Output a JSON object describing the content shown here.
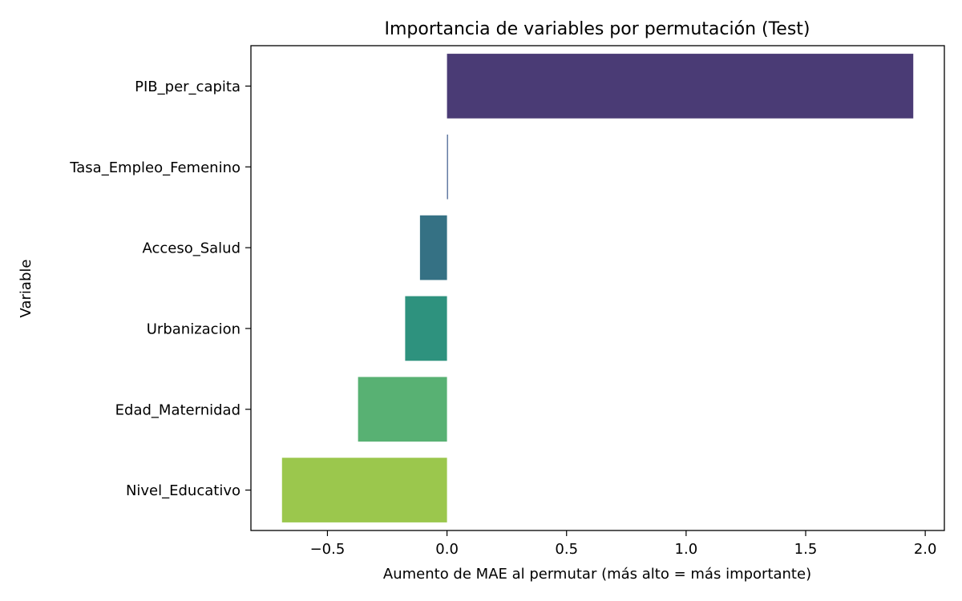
{
  "chart_data": {
    "type": "bar",
    "orientation": "horizontal",
    "title": "Importancia de variables por permutación (Test)",
    "xlabel": "Aumento de MAE al permutar (más alto = más importante)",
    "ylabel": "Variable",
    "categories": [
      "PIB_per_capita",
      "Tasa_Empleo_Femenino",
      "Acceso_Salud",
      "Urbanizacion",
      "Edad_Maternidad",
      "Nivel_Educativo"
    ],
    "values": [
      1.95,
      0.003,
      -0.113,
      -0.175,
      -0.372,
      -0.69
    ],
    "colors": [
      "#4a3b75",
      "#3c5a8c",
      "#357184",
      "#2e927e",
      "#58b173",
      "#9bc74d"
    ],
    "xlim": [
      -0.82,
      2.08
    ],
    "xticks": [
      -0.5,
      0.0,
      0.5,
      1.0,
      1.5,
      2.0
    ],
    "xtick_labels": [
      "−0.5",
      "0.0",
      "0.5",
      "1.0",
      "1.5",
      "2.0"
    ],
    "grid": false,
    "legend": "none"
  }
}
